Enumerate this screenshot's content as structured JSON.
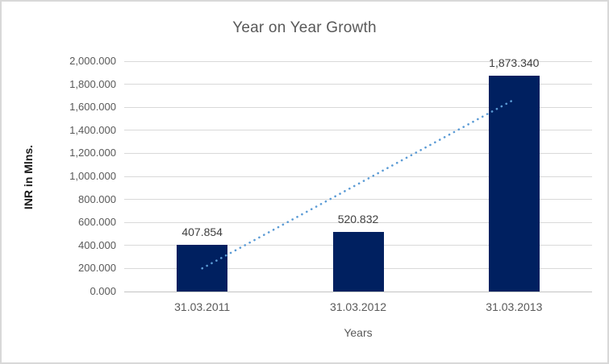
{
  "window": {
    "background": "#ffffff",
    "border_color": "#d8d8d8"
  },
  "chart_data": {
    "type": "bar",
    "title": "Year on Year Growth",
    "xlabel": "Years",
    "ylabel": "INR in Mlns.",
    "categories": [
      "31.03.2011",
      "31.03.2012",
      "31.03.2013"
    ],
    "values": [
      407.854,
      520.832,
      1873.34
    ],
    "data_labels": [
      "407.854",
      "520.832",
      "1,873.340"
    ],
    "ylim": [
      0,
      2000
    ],
    "y_tick_step": 200,
    "y_tick_labels": [
      "0.000",
      "200.000",
      "400.000",
      "600.000",
      "800.000",
      "1,000.000",
      "1,200.000",
      "1,400.000",
      "1,600.000",
      "1,800.000",
      "2,000.000"
    ],
    "grid": true,
    "legend_position": "none",
    "colors": {
      "bar": "#002060",
      "trendline": "#5b9bd5",
      "gridline": "#d9d9d9",
      "axis_line": "#c3c3c3",
      "title_text": "#595959",
      "tick_text": "#595959",
      "data_label_text": "#404040",
      "ylabel_text": "#1a1a1a"
    },
    "trendline": {
      "series": "linear-fit",
      "style": "dotted"
    }
  }
}
